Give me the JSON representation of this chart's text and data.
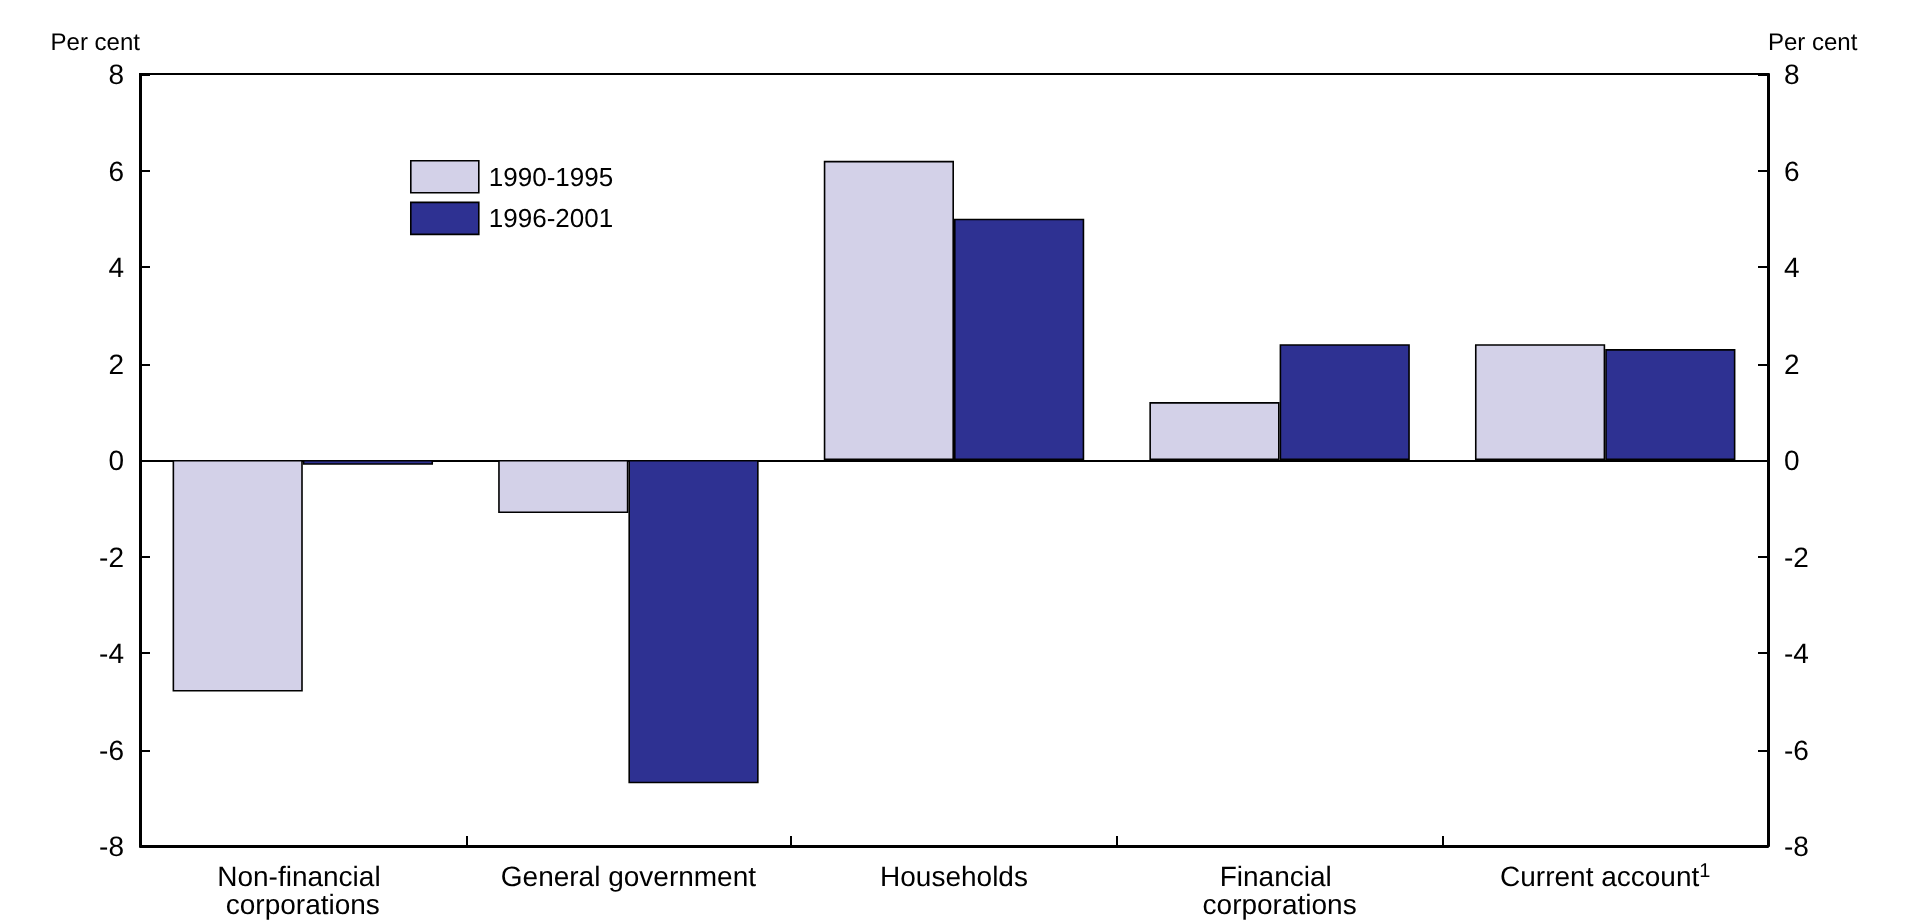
{
  "chart_data": {
    "type": "bar",
    "ylabel": "Per cent",
    "y2label": "Per cent",
    "categories": [
      "Non-financial corporations",
      "General government",
      "Households",
      "Financial corporations",
      "Current account$^{1}$"
    ],
    "series": [
      {
        "name": "1990-1995",
        "color": "#d3d1e8",
        "values": [
          -4.8,
          -1.1,
          6.2,
          1.2,
          2.4
        ]
      },
      {
        "name": "1996-2001",
        "color": "#2e3192",
        "values": [
          -0.1,
          -6.7,
          5.0,
          2.4,
          2.3
        ]
      }
    ],
    "ylim": [
      -8,
      8
    ],
    "yticks": [
      -8,
      -6,
      -4,
      -2,
      0,
      2,
      4,
      6,
      8
    ],
    "y2lim": [
      -8,
      8
    ],
    "y2ticks": [
      -8,
      -6,
      -4,
      -2,
      0,
      2,
      4,
      6,
      8
    ],
    "legend": "top left"
  }
}
